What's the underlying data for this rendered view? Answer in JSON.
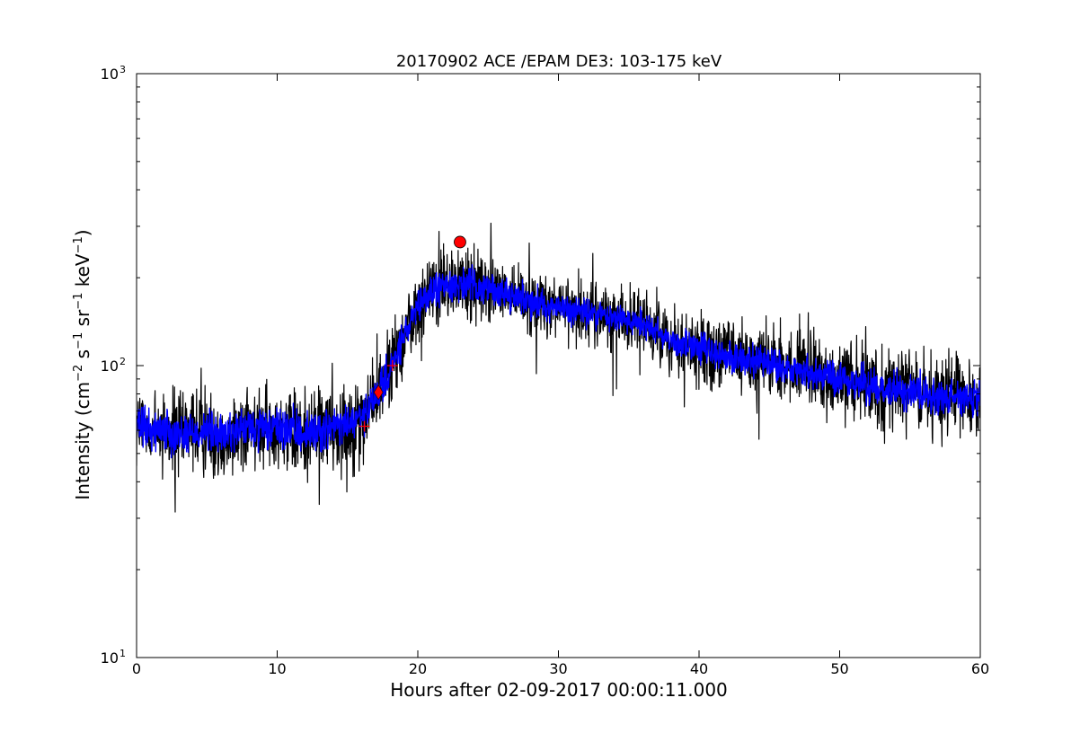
{
  "chart_data": {
    "type": "line",
    "title": "20170902 ACE /EPAM DE3: 103-175 keV",
    "xlabel": "Hours after 02-09-2017 00:00:11.000",
    "ylabel": {
      "base": "Intensity (cm",
      "parts": [
        {
          "text": "−2",
          "sup": true
        },
        {
          "text": " s",
          "sup": false
        },
        {
          "text": "−1",
          "sup": true
        },
        {
          "text": " sr",
          "sup": false
        },
        {
          "text": "−1",
          "sup": true
        },
        {
          "text": " keV",
          "sup": false
        },
        {
          "text": "−1",
          "sup": true
        },
        {
          "text": ")",
          "sup": false
        }
      ]
    },
    "xlim": [
      0,
      60
    ],
    "ylim": [
      10,
      1000
    ],
    "yscale": "log",
    "grid": false,
    "x_ticks": [
      0,
      10,
      20,
      30,
      40,
      50,
      60
    ],
    "y_ticks": [
      {
        "value": 10,
        "base": "10",
        "exp": "1"
      },
      {
        "value": 100,
        "base": "10",
        "exp": "2"
      },
      {
        "value": 1000,
        "base": "10",
        "exp": "3"
      }
    ],
    "colors": {
      "raw": "#000000",
      "smoothed": "#0000ff",
      "markers": "#ff0000"
    },
    "series": [
      {
        "role": "raw",
        "x": [
          0,
          1,
          2,
          3,
          4,
          5,
          6,
          7,
          8,
          9,
          10,
          11,
          12,
          13,
          14,
          15,
          16,
          16.5,
          17,
          17.5,
          18,
          18.5,
          19,
          19.5,
          20,
          20.5,
          21,
          22,
          23,
          24,
          25,
          26,
          27,
          28,
          29,
          30,
          32,
          34,
          36,
          37,
          38,
          39,
          40,
          42,
          44,
          46,
          48,
          50,
          52,
          54,
          56,
          58,
          60
        ],
        "y": [
          62,
          60,
          61,
          58,
          59,
          60,
          57,
          60,
          61,
          60,
          61,
          60,
          59,
          60,
          61,
          63,
          66,
          70,
          78,
          86,
          95,
          108,
          125,
          140,
          155,
          168,
          180,
          188,
          190,
          188,
          183,
          178,
          172,
          167,
          162,
          157,
          152,
          146,
          140,
          132,
          122,
          118,
          114,
          108,
          103,
          98,
          94,
          90,
          86,
          83,
          80,
          78,
          76
        ],
        "spread": [
          1.35,
          1.35,
          1.35,
          1.35,
          1.35,
          1.35,
          1.35,
          1.35,
          1.35,
          1.35,
          1.35,
          1.35,
          1.35,
          1.35,
          1.35,
          1.35,
          1.33,
          1.33,
          1.32,
          1.32,
          1.32,
          1.32,
          1.3,
          1.3,
          1.28,
          1.28,
          1.28,
          1.28,
          1.28,
          1.28,
          1.26,
          1.25,
          1.25,
          1.24,
          1.24,
          1.24,
          1.23,
          1.23,
          1.24,
          1.25,
          1.27,
          1.27,
          1.28,
          1.28,
          1.28,
          1.3,
          1.3,
          1.3,
          1.32,
          1.32,
          1.34,
          1.34,
          1.36
        ]
      },
      {
        "role": "smoothed",
        "x": [
          0,
          1,
          2,
          3,
          4,
          5,
          6,
          7,
          8,
          9,
          10,
          11,
          12,
          13,
          14,
          15,
          16,
          16.5,
          17,
          17.5,
          18,
          18.5,
          19,
          19.5,
          20,
          20.5,
          21,
          22,
          23,
          24,
          25,
          26,
          27,
          28,
          29,
          30,
          32,
          34,
          36,
          37,
          38,
          39,
          40,
          42,
          44,
          46,
          48,
          50,
          52,
          54,
          56,
          58,
          60
        ],
        "y": [
          62,
          60,
          61,
          58,
          59,
          60,
          57,
          60,
          61,
          60,
          61,
          60,
          59,
          60,
          61,
          63,
          66,
          70,
          78,
          86,
          95,
          108,
          125,
          140,
          155,
          168,
          180,
          188,
          190,
          188,
          183,
          178,
          172,
          167,
          162,
          157,
          152,
          146,
          140,
          132,
          122,
          118,
          114,
          108,
          103,
          98,
          94,
          90,
          86,
          83,
          80,
          78,
          76
        ],
        "spread": [
          1.15,
          1.15,
          1.15,
          1.15,
          1.15,
          1.15,
          1.15,
          1.15,
          1.15,
          1.15,
          1.15,
          1.15,
          1.15,
          1.15,
          1.15,
          1.15,
          1.14,
          1.14,
          1.13,
          1.13,
          1.13,
          1.13,
          1.12,
          1.12,
          1.12,
          1.12,
          1.12,
          1.12,
          1.12,
          1.12,
          1.11,
          1.11,
          1.11,
          1.11,
          1.11,
          1.11,
          1.11,
          1.11,
          1.11,
          1.11,
          1.11,
          1.11,
          1.12,
          1.12,
          1.12,
          1.12,
          1.12,
          1.12,
          1.13,
          1.13,
          1.13,
          1.13,
          1.13
        ]
      }
    ],
    "markers": [
      {
        "shape": "plus",
        "x": 16.2,
        "y": 62
      },
      {
        "shape": "diamond",
        "x": 17.2,
        "y": 81
      },
      {
        "shape": "plus",
        "x": 18.2,
        "y": 100
      },
      {
        "shape": "circle",
        "x": 23.0,
        "y": 265
      }
    ]
  }
}
